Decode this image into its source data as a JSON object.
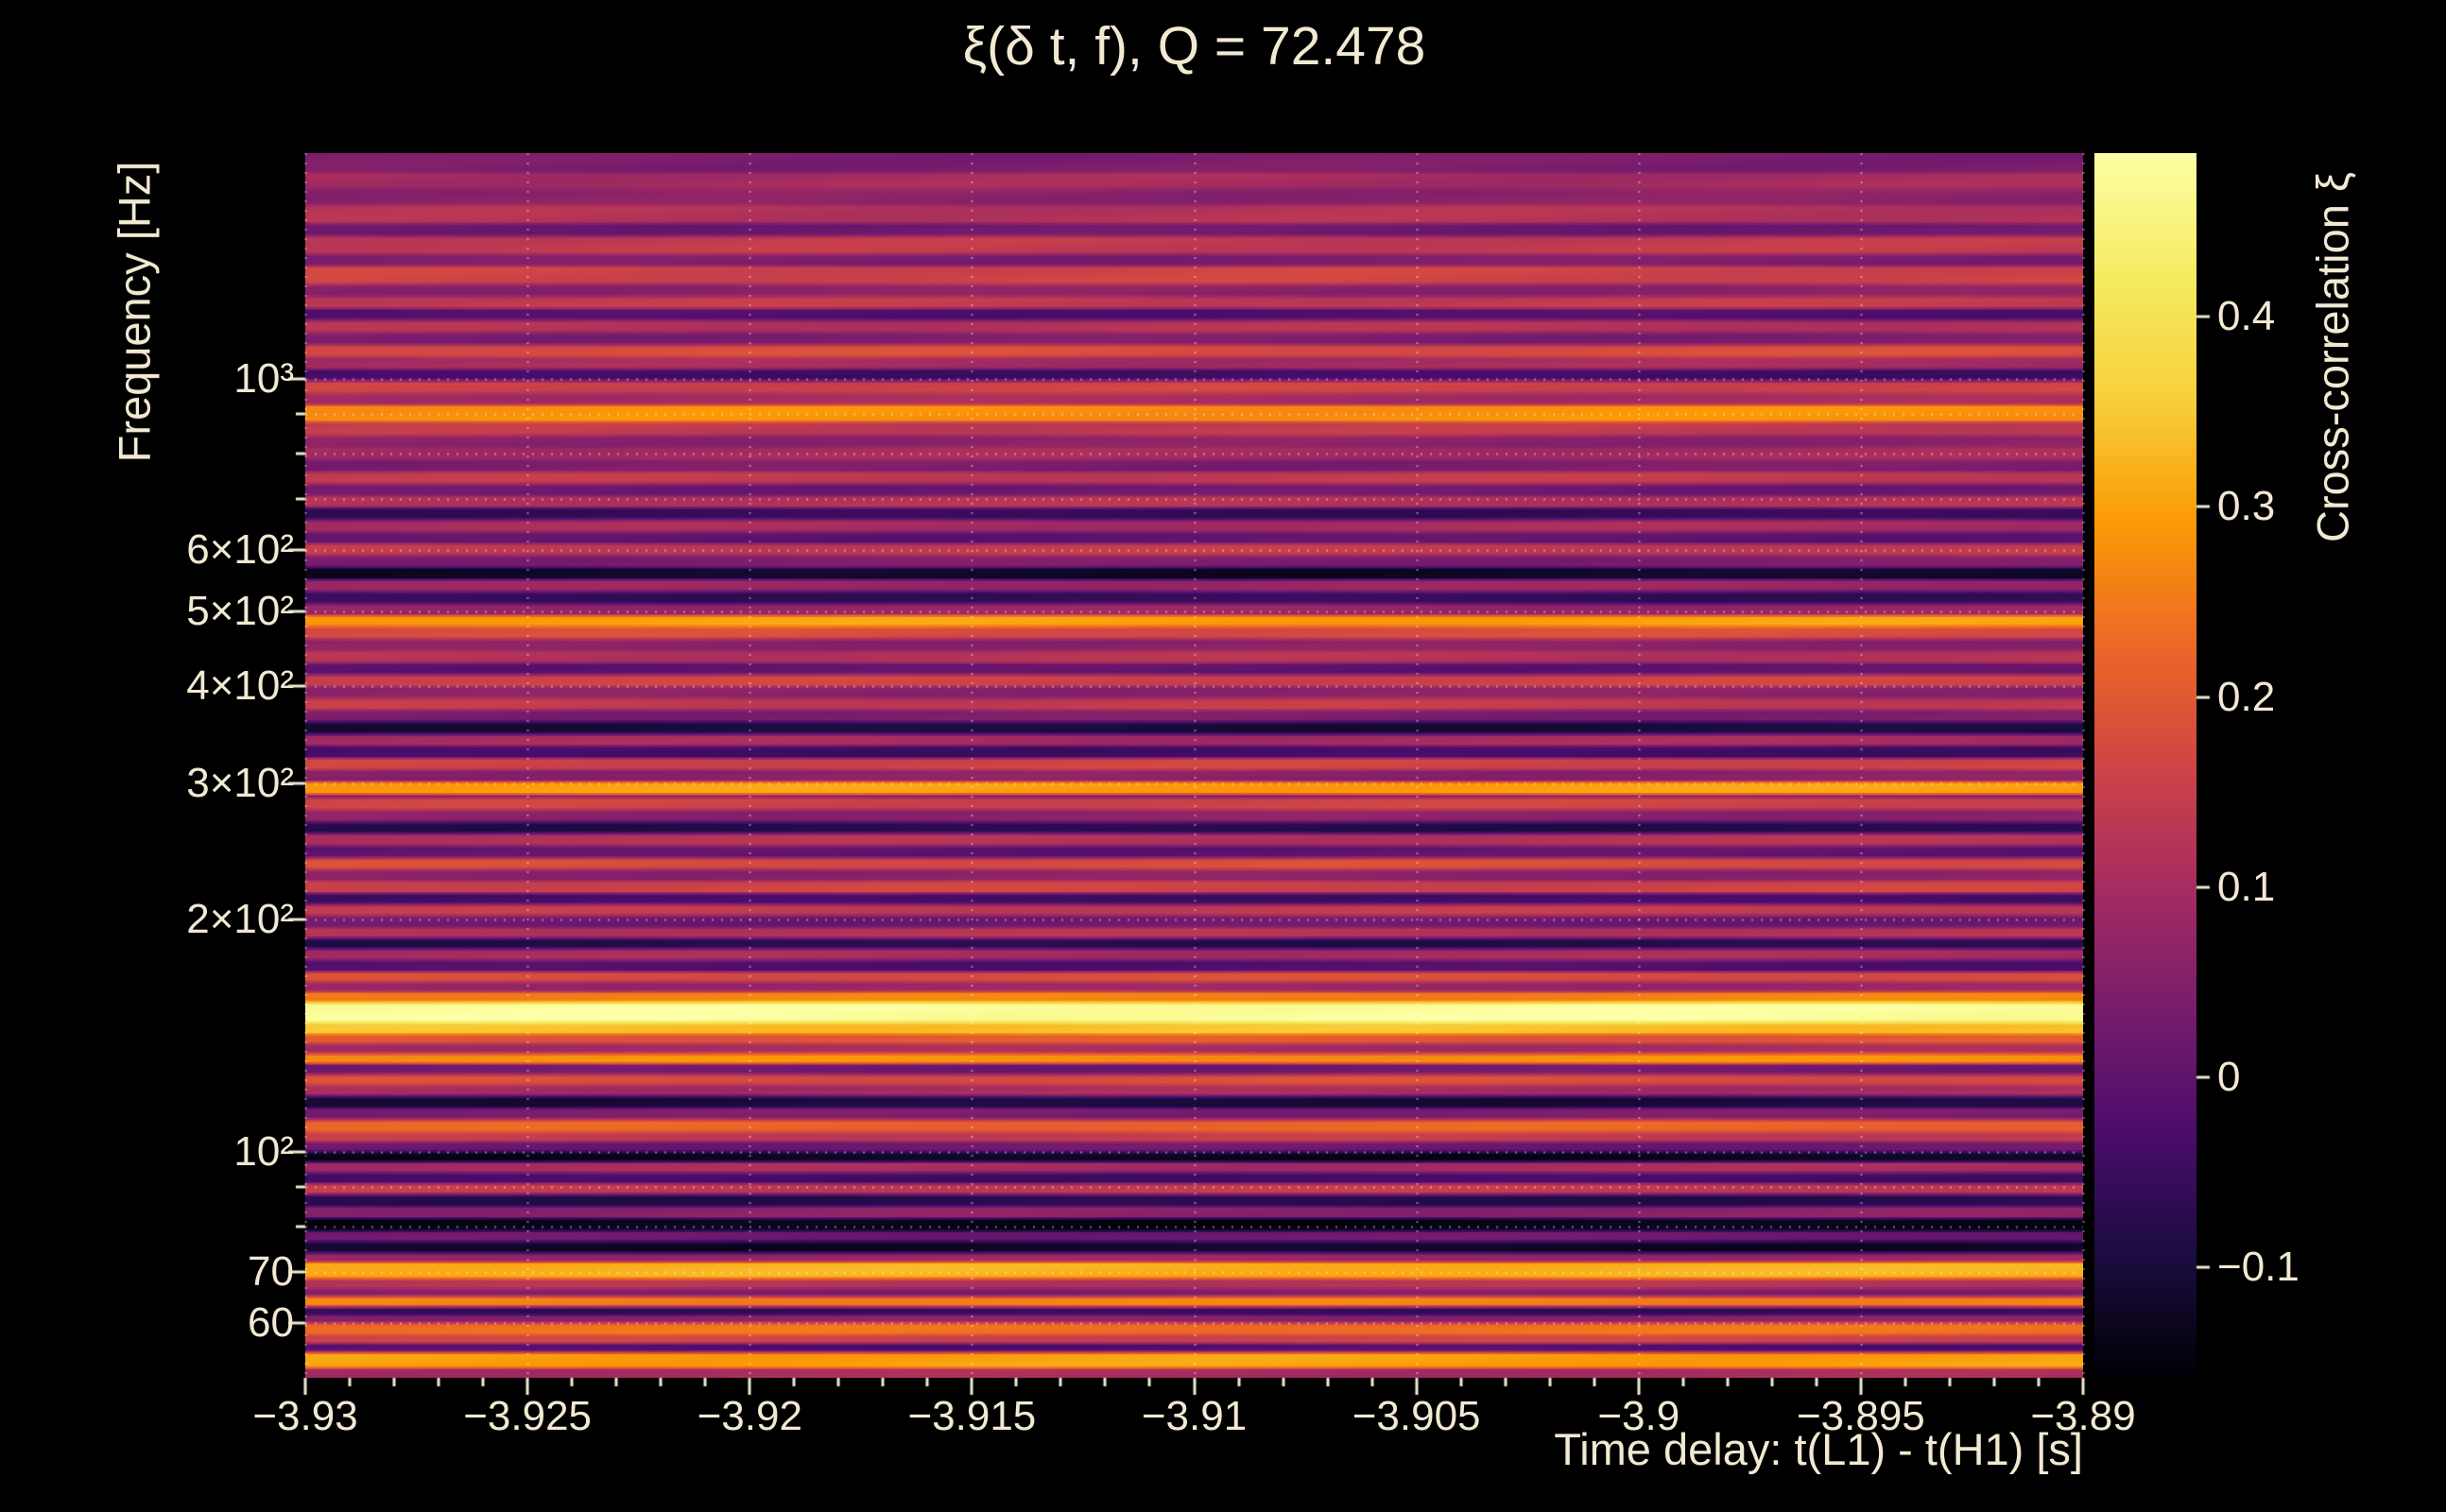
{
  "chart_data": {
    "type": "heatmap",
    "title": "ξ(δ t, f), Q = 72.478",
    "q_value": 72.478,
    "xlabel": "Time delay: t(L1) - t(H1) [s]",
    "ylabel": "Frequency [Hz]",
    "colorbar_label": "Cross-correlation ξ",
    "xscale": "linear",
    "yscale": "log",
    "xlim": [
      -3.93,
      -3.89
    ],
    "ylim": [
      51,
      1960
    ],
    "colormap": "inferno",
    "value_range": [
      -0.158,
      0.486
    ],
    "grid": true,
    "xticks": [
      {
        "value": -3.93,
        "label": "−3.93"
      },
      {
        "value": -3.925,
        "label": "−3.925"
      },
      {
        "value": -3.92,
        "label": "−3.92"
      },
      {
        "value": -3.915,
        "label": "−3.915"
      },
      {
        "value": -3.91,
        "label": "−3.91"
      },
      {
        "value": -3.905,
        "label": "−3.905"
      },
      {
        "value": -3.9,
        "label": "−3.9"
      },
      {
        "value": -3.895,
        "label": "−3.895"
      },
      {
        "value": -3.89,
        "label": "−3.89"
      }
    ],
    "yticks": [
      {
        "value": 1000,
        "label": "10³"
      },
      {
        "value": 600,
        "label": "6×10²"
      },
      {
        "value": 500,
        "label": "5×10²"
      },
      {
        "value": 400,
        "label": "4×10²"
      },
      {
        "value": 300,
        "label": "3×10²"
      },
      {
        "value": 200,
        "label": "2×10²"
      },
      {
        "value": 100,
        "label": "10²"
      },
      {
        "value": 70,
        "label": "70"
      },
      {
        "value": 60,
        "label": "60"
      }
    ],
    "y_minor_ticks": [
      80,
      90,
      700,
      800,
      900
    ],
    "colorbar_ticks": [
      {
        "value": 0.4,
        "label": "0.4"
      },
      {
        "value": 0.3,
        "label": "0.3"
      },
      {
        "value": 0.2,
        "label": "0.2"
      },
      {
        "value": 0.1,
        "label": "0.1"
      },
      {
        "value": 0,
        "label": "0"
      },
      {
        "value": -0.1,
        "label": "−0.1"
      }
    ],
    "bands_format": "[freq_lo_Hz, freq_hi_Hz, cross_correlation_xi]; values approximately constant along the time-delay axis, forming horizontal bands",
    "bands": [
      [
        51,
        52.5,
        0.1
      ],
      [
        52.5,
        55,
        0.3
      ],
      [
        55,
        56.5,
        -0.02
      ],
      [
        56.5,
        58,
        0.16
      ],
      [
        58,
        60,
        0.24
      ],
      [
        60,
        61.5,
        0.06
      ],
      [
        61.5,
        63,
        -0.06
      ],
      [
        63,
        65,
        0.26
      ],
      [
        65,
        66.5,
        0.04
      ],
      [
        66.5,
        68.5,
        0.12
      ],
      [
        68.5,
        72,
        0.32
      ],
      [
        72,
        74,
        0.08
      ],
      [
        74,
        76.5,
        -0.12
      ],
      [
        76.5,
        79,
        0.02
      ],
      [
        79,
        82,
        -0.14
      ],
      [
        82,
        85,
        0.06
      ],
      [
        85,
        88,
        -0.08
      ],
      [
        88,
        91,
        0.14
      ],
      [
        91,
        94,
        -0.04
      ],
      [
        94,
        97,
        0.1
      ],
      [
        97,
        100,
        -0.13
      ],
      [
        100,
        103,
        0.02
      ],
      [
        103,
        106,
        0.14
      ],
      [
        106,
        110,
        0.22
      ],
      [
        110,
        114,
        0.04
      ],
      [
        114,
        118,
        -0.1
      ],
      [
        118,
        122,
        0.1
      ],
      [
        122,
        126,
        0.18
      ],
      [
        126,
        130,
        0.02
      ],
      [
        130,
        134,
        0.28
      ],
      [
        134,
        138,
        0.1
      ],
      [
        138,
        142,
        0.2
      ],
      [
        142,
        147,
        0.34
      ],
      [
        147,
        156,
        0.48
      ],
      [
        156,
        161,
        0.26
      ],
      [
        161,
        166,
        0.08
      ],
      [
        166,
        171,
        0.18
      ],
      [
        171,
        177,
        -0.02
      ],
      [
        177,
        183,
        0.1
      ],
      [
        183,
        189,
        -0.08
      ],
      [
        189,
        195,
        0.12
      ],
      [
        195,
        202,
        0.02
      ],
      [
        202,
        209,
        0.14
      ],
      [
        209,
        216,
        -0.04
      ],
      [
        216,
        224,
        0.16
      ],
      [
        224,
        232,
        0.06
      ],
      [
        232,
        240,
        0.18
      ],
      [
        240,
        249,
        0.0
      ],
      [
        249,
        258,
        0.12
      ],
      [
        258,
        267,
        -0.08
      ],
      [
        267,
        277,
        0.06
      ],
      [
        277,
        287,
        0.16
      ],
      [
        287,
        290,
        0.04
      ],
      [
        290,
        301,
        0.3
      ],
      [
        301,
        312,
        0.06
      ],
      [
        312,
        323,
        0.16
      ],
      [
        323,
        335,
        -0.04
      ],
      [
        335,
        347,
        0.1
      ],
      [
        347,
        360,
        -0.1
      ],
      [
        360,
        373,
        0.04
      ],
      [
        373,
        386,
        0.14
      ],
      [
        386,
        400,
        0.06
      ],
      [
        400,
        414,
        0.16
      ],
      [
        414,
        429,
        0.0
      ],
      [
        429,
        445,
        0.12
      ],
      [
        445,
        461,
        0.06
      ],
      [
        461,
        478,
        0.18
      ],
      [
        478,
        494,
        0.3
      ],
      [
        494,
        512,
        0.08
      ],
      [
        512,
        531,
        -0.06
      ],
      [
        531,
        550,
        0.08
      ],
      [
        550,
        570,
        -0.12
      ],
      [
        570,
        591,
        0.04
      ],
      [
        591,
        612,
        0.14
      ],
      [
        612,
        634,
        0.0
      ],
      [
        634,
        657,
        0.1
      ],
      [
        657,
        681,
        -0.06
      ],
      [
        681,
        706,
        0.12
      ],
      [
        706,
        732,
        0.02
      ],
      [
        732,
        758,
        0.14
      ],
      [
        758,
        786,
        0.04
      ],
      [
        786,
        815,
        0.1
      ],
      [
        815,
        845,
        0.06
      ],
      [
        845,
        880,
        0.14
      ],
      [
        880,
        925,
        0.28
      ],
      [
        925,
        959,
        0.1
      ],
      [
        959,
        994,
        0.16
      ],
      [
        994,
        1030,
        -0.04
      ],
      [
        1030,
        1068,
        0.1
      ],
      [
        1068,
        1107,
        0.18
      ],
      [
        1107,
        1148,
        0.04
      ],
      [
        1148,
        1190,
        0.12
      ],
      [
        1190,
        1233,
        -0.02
      ],
      [
        1233,
        1278,
        0.14
      ],
      [
        1278,
        1325,
        0.06
      ],
      [
        1325,
        1400,
        0.16
      ],
      [
        1400,
        1450,
        0.04
      ],
      [
        1450,
        1530,
        0.14
      ],
      [
        1530,
        1590,
        0.02
      ],
      [
        1590,
        1680,
        0.12
      ],
      [
        1680,
        1760,
        0.06
      ],
      [
        1760,
        1850,
        0.1
      ],
      [
        1850,
        1960,
        0.04
      ]
    ]
  },
  "colors": {
    "background": "#000000",
    "text": "#f2e9d2",
    "grid": "#ffffff"
  }
}
